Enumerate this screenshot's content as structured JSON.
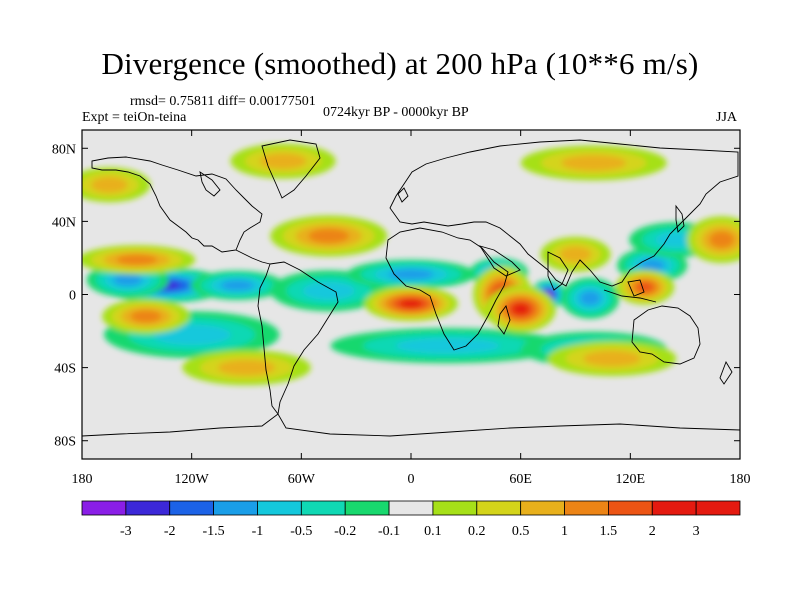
{
  "title": "Divergence (smoothed) at 200 hPa (10**6 m/s)",
  "stats": "rmsd= 0.75811 diff= 0.00177501",
  "experiment": "Expt = teiOn-teina",
  "period": "0724kyr BP - 0000kyr BP",
  "season": "JJA",
  "lat_ticks": [
    "80N",
    "40N",
    "0",
    "40S",
    "80S"
  ],
  "lon_ticks": [
    "180",
    "120W",
    "60W",
    "0",
    "60E",
    "120E",
    "180"
  ],
  "colorbar": {
    "labels": [
      "-3",
      "-2",
      "-1.5",
      "-1",
      "-0.5",
      "-0.2",
      "-0.1",
      "0.1",
      "0.2",
      "0.5",
      "1",
      "1.5",
      "2",
      "3"
    ],
    "colors": [
      "#8a1ee6",
      "#3c28d8",
      "#1c62e6",
      "#1a9ee8",
      "#14c8dc",
      "#10d8b4",
      "#18d86e",
      "#e6e6e6",
      "#a6e018",
      "#d4d41a",
      "#e8b01c",
      "#ec8416",
      "#ec5414",
      "#e41a10",
      "#e41a10"
    ]
  },
  "chart_data": {
    "type": "heatmap",
    "title": "Divergence (smoothed) at 200 hPa (10**6 m/s)",
    "lon_range": [
      -180,
      180
    ],
    "lat_range": [
      -90,
      90
    ],
    "levels": [
      -3,
      -2,
      -1.5,
      -1,
      -0.5,
      -0.2,
      -0.1,
      0.1,
      0.2,
      0.5,
      1,
      1.5,
      2,
      3
    ],
    "features": [
      {
        "lon": -135,
        "lat": 5,
        "value": -2.4,
        "spread_lon": 22,
        "spread_lat": 6
      },
      {
        "lon": -155,
        "lat": 8,
        "value": -1.4,
        "spread_lon": 14,
        "spread_lat": 6
      },
      {
        "lon": -95,
        "lat": 5,
        "value": -1.2,
        "spread_lon": 16,
        "spread_lat": 5
      },
      {
        "lon": -45,
        "lat": 2,
        "value": -0.8,
        "spread_lon": 20,
        "spread_lat": 7
      },
      {
        "lon": 0,
        "lat": 11,
        "value": -1.4,
        "spread_lon": 22,
        "spread_lat": 5
      },
      {
        "lon": 48,
        "lat": 12,
        "value": -1.7,
        "spread_lon": 10,
        "spread_lat": 5
      },
      {
        "lon": 75,
        "lat": 0,
        "value": -3.2,
        "spread_lon": 6,
        "spread_lat": 5
      },
      {
        "lon": 98,
        "lat": -2,
        "value": -1.2,
        "spread_lon": 10,
        "spread_lat": 7
      },
      {
        "lon": 132,
        "lat": 16,
        "value": -1.4,
        "spread_lon": 12,
        "spread_lat": 6
      },
      {
        "lon": 145,
        "lat": 30,
        "value": -0.8,
        "spread_lon": 16,
        "spread_lat": 6
      },
      {
        "lon": -120,
        "lat": -22,
        "value": -0.7,
        "spread_lon": 30,
        "spread_lat": 8
      },
      {
        "lon": 20,
        "lat": -28,
        "value": -0.5,
        "spread_lon": 40,
        "spread_lat": 6
      },
      {
        "lon": 100,
        "lat": -30,
        "value": -0.6,
        "spread_lon": 25,
        "spread_lat": 6
      },
      {
        "lon": 0,
        "lat": -5,
        "value": 2.6,
        "spread_lon": 16,
        "spread_lat": 6
      },
      {
        "lon": 50,
        "lat": 0,
        "value": 2.5,
        "spread_lon": 10,
        "spread_lat": 10
      },
      {
        "lon": 60,
        "lat": -8,
        "value": 2.0,
        "spread_lon": 12,
        "spread_lat": 8
      },
      {
        "lon": 128,
        "lat": 4,
        "value": 1.9,
        "spread_lon": 10,
        "spread_lat": 6
      },
      {
        "lon": -150,
        "lat": 19,
        "value": 1.3,
        "spread_lon": 20,
        "spread_lat": 5
      },
      {
        "lon": -145,
        "lat": -12,
        "value": 1.2,
        "spread_lon": 15,
        "spread_lat": 6
      },
      {
        "lon": -45,
        "lat": 32,
        "value": 1.1,
        "spread_lon": 20,
        "spread_lat": 7
      },
      {
        "lon": 170,
        "lat": 30,
        "value": 1.1,
        "spread_lon": 12,
        "spread_lat": 8
      },
      {
        "lon": -165,
        "lat": 60,
        "value": 0.8,
        "spread_lon": 14,
        "spread_lat": 6
      },
      {
        "lon": -70,
        "lat": 73,
        "value": 0.7,
        "spread_lon": 18,
        "spread_lat": 6
      },
      {
        "lon": 100,
        "lat": 72,
        "value": 0.7,
        "spread_lon": 25,
        "spread_lat": 6
      },
      {
        "lon": 110,
        "lat": -35,
        "value": 0.9,
        "spread_lon": 22,
        "spread_lat": 6
      },
      {
        "lon": -90,
        "lat": -40,
        "value": 0.6,
        "spread_lon": 22,
        "spread_lat": 6
      },
      {
        "lon": 90,
        "lat": 22,
        "value": 0.9,
        "spread_lon": 12,
        "spread_lat": 6
      }
    ]
  }
}
